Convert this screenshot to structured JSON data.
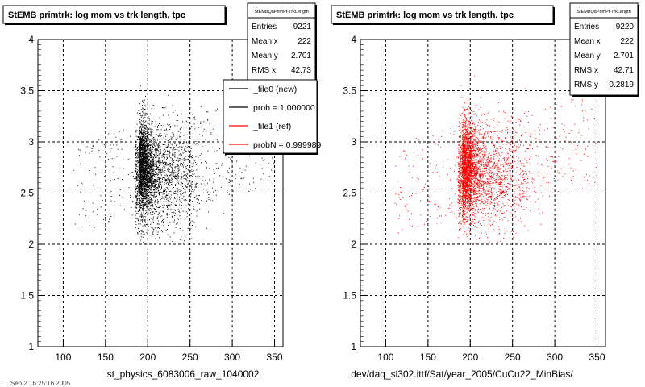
{
  "page": {
    "footer_fragment": "... Sep 2 16:25:16 2005"
  },
  "colors": {
    "new": "#000000",
    "ref": "#ff0000",
    "grid": "#000000"
  },
  "panels": [
    {
      "title": "StEMB primtrk: log mom vs trk length, tpc",
      "xlabel": "st_physics_6083006_raw_1040002",
      "stats": {
        "header": "StEMBQaPrimPt-TrkLength",
        "rows": [
          {
            "label": "Entries",
            "value": "9221"
          },
          {
            "label": "Mean x",
            "value": "222"
          },
          {
            "label": "Mean y",
            "value": "2.701"
          },
          {
            "label": "RMS x",
            "value": "42.73"
          }
        ]
      },
      "legend": [
        {
          "label": "_file0 (new)",
          "color": "#000000"
        },
        {
          "label": "prob = 1.000000",
          "color": "#000000"
        },
        {
          "label": "_file1 (ref)",
          "color": "#ff0000"
        },
        {
          "label": "probN = 0.999989",
          "color": "#ff0000"
        }
      ]
    },
    {
      "title": "StEMB primtrk: log mom vs trk length, tpc",
      "xlabel": "dev/daq_sl302.ittf/Sat/year_2005/CuCu22_MinBias/",
      "stats": {
        "header": "StEMBQaPrimPt-TrkLength",
        "rows": [
          {
            "label": "Entries",
            "value": "9220"
          },
          {
            "label": "Mean x",
            "value": "222"
          },
          {
            "label": "Mean y",
            "value": "2.701"
          },
          {
            "label": "RMS x",
            "value": "42.71"
          },
          {
            "label": "RMS y",
            "value": "0.2819"
          }
        ]
      }
    }
  ],
  "chart_data": [
    {
      "type": "scatter",
      "title": "StEMB primtrk: log mom vs trk length, tpc",
      "xlabel": "st_physics_6083006_raw_1040002",
      "ylabel": "",
      "xlim": [
        70,
        360
      ],
      "ylim": [
        1,
        4
      ],
      "xticks": [
        100,
        150,
        200,
        250,
        300,
        350
      ],
      "yticks": [
        1,
        1.5,
        2,
        2.5,
        3,
        3.5,
        4
      ],
      "grid": true,
      "series": [
        {
          "name": "_file0 (new)",
          "color": "#000000",
          "entries": 9221,
          "points_sampled": 4000,
          "mean_x": 222,
          "mean_y": 2.701,
          "rms_x": 42.73,
          "rms_y": 0.2819,
          "density_core": {
            "x": [
              185,
              215
            ],
            "y": [
              2.3,
              3.2
            ]
          },
          "extent": {
            "x": [
              110,
              350
            ],
            "y": [
              2.0,
              3.8
            ]
          }
        }
      ]
    },
    {
      "type": "scatter",
      "title": "StEMB primtrk: log mom vs trk length, tpc",
      "xlabel": "dev/daq_sl302.ittf/Sat/year_2005/CuCu22_MinBias/",
      "ylabel": "",
      "xlim": [
        70,
        360
      ],
      "ylim": [
        1,
        4
      ],
      "xticks": [
        100,
        150,
        200,
        250,
        300,
        350
      ],
      "yticks": [
        1,
        1.5,
        2,
        2.5,
        3,
        3.5,
        4
      ],
      "grid": true,
      "series": [
        {
          "name": "_file1 (ref)",
          "color": "#ff0000",
          "entries": 9220,
          "points_sampled": 4000,
          "mean_x": 222,
          "mean_y": 2.701,
          "rms_x": 42.71,
          "rms_y": 0.2819,
          "density_core": {
            "x": [
              185,
              215
            ],
            "y": [
              2.3,
              3.2
            ]
          },
          "extent": {
            "x": [
              110,
              350
            ],
            "y": [
              2.0,
              3.8
            ]
          }
        }
      ]
    }
  ]
}
